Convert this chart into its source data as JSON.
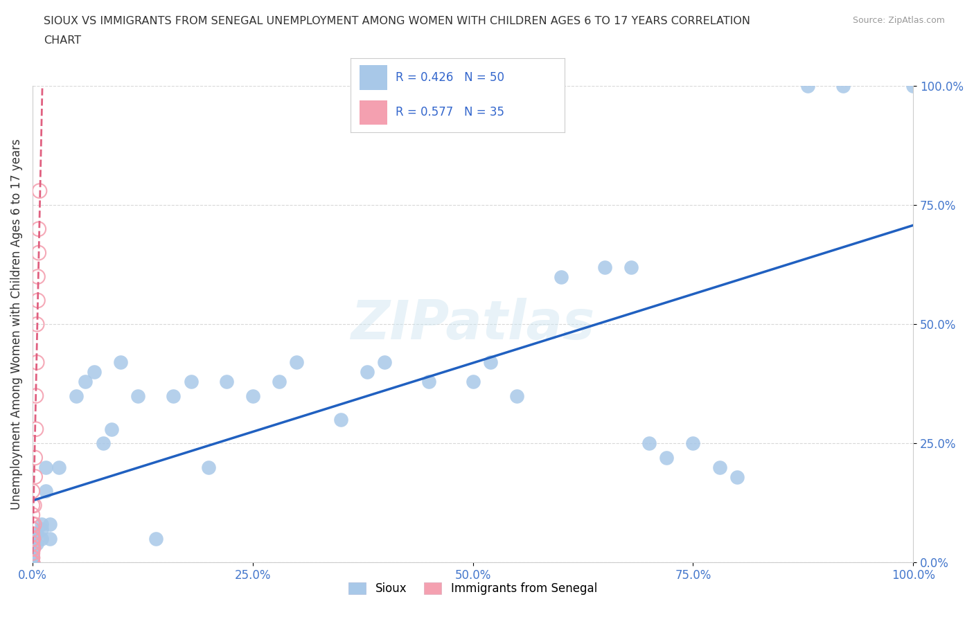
{
  "title_line1": "SIOUX VS IMMIGRANTS FROM SENEGAL UNEMPLOYMENT AMONG WOMEN WITH CHILDREN AGES 6 TO 17 YEARS CORRELATION",
  "title_line2": "CHART",
  "source": "Source: ZipAtlas.com",
  "ylabel": "Unemployment Among Women with Children Ages 6 to 17 years",
  "sioux_R": 0.426,
  "sioux_N": 50,
  "senegal_R": 0.577,
  "senegal_N": 35,
  "sioux_color": "#a8c8e8",
  "senegal_color": "#f4a0b0",
  "sioux_line_color": "#2060c0",
  "senegal_line_color": "#e06080",
  "background_color": "#ffffff",
  "grid_color": "#d8d8d8",
  "right_ytick_labels": [
    "0.0%",
    "25.0%",
    "50.0%",
    "75.0%",
    "100.0%"
  ],
  "right_ytick_positions": [
    0.0,
    0.25,
    0.5,
    0.75,
    1.0
  ],
  "xtick_labels": [
    "0.0%",
    "25.0%",
    "50.0%",
    "75.0%",
    "100.0%"
  ],
  "xtick_positions": [
    0.0,
    0.25,
    0.5,
    0.75,
    1.0
  ],
  "sioux_x": [
    0.0,
    0.0,
    0.0,
    0.0,
    0.0,
    0.0,
    0.0,
    0.005,
    0.005,
    0.01,
    0.01,
    0.01,
    0.015,
    0.015,
    0.02,
    0.02,
    0.03,
    0.05,
    0.06,
    0.07,
    0.08,
    0.09,
    0.1,
    0.12,
    0.14,
    0.16,
    0.18,
    0.2,
    0.22,
    0.25,
    0.28,
    0.3,
    0.35,
    0.38,
    0.4,
    0.45,
    0.5,
    0.52,
    0.55,
    0.6,
    0.65,
    0.68,
    0.7,
    0.72,
    0.75,
    0.78,
    0.8,
    0.88,
    0.92,
    1.0
  ],
  "sioux_y": [
    0.0,
    0.0,
    0.01,
    0.01,
    0.02,
    0.03,
    0.05,
    0.04,
    0.06,
    0.05,
    0.07,
    0.08,
    0.15,
    0.2,
    0.05,
    0.08,
    0.2,
    0.35,
    0.38,
    0.4,
    0.25,
    0.28,
    0.42,
    0.35,
    0.05,
    0.35,
    0.38,
    0.2,
    0.38,
    0.35,
    0.38,
    0.42,
    0.3,
    0.4,
    0.42,
    0.38,
    0.38,
    0.42,
    0.35,
    0.6,
    0.62,
    0.62,
    0.25,
    0.22,
    0.25,
    0.2,
    0.18,
    1.0,
    1.0,
    1.0
  ],
  "senegal_x": [
    0.0,
    0.0,
    0.0,
    0.0,
    0.0,
    0.0,
    0.0,
    0.0,
    0.0,
    0.0,
    0.0,
    0.0,
    0.0,
    0.0,
    0.0,
    0.0,
    0.0,
    0.0,
    0.0,
    0.0,
    0.001,
    0.001,
    0.002,
    0.002,
    0.003,
    0.003,
    0.004,
    0.004,
    0.005,
    0.005,
    0.006,
    0.006,
    0.007,
    0.007,
    0.008
  ],
  "senegal_y": [
    0.0,
    0.0,
    0.0,
    0.0,
    0.0,
    0.0,
    0.0,
    0.0,
    0.01,
    0.01,
    0.02,
    0.03,
    0.04,
    0.05,
    0.06,
    0.07,
    0.08,
    0.1,
    0.12,
    0.15,
    0.03,
    0.05,
    0.08,
    0.12,
    0.18,
    0.22,
    0.28,
    0.35,
    0.42,
    0.5,
    0.55,
    0.6,
    0.65,
    0.7,
    0.78
  ]
}
